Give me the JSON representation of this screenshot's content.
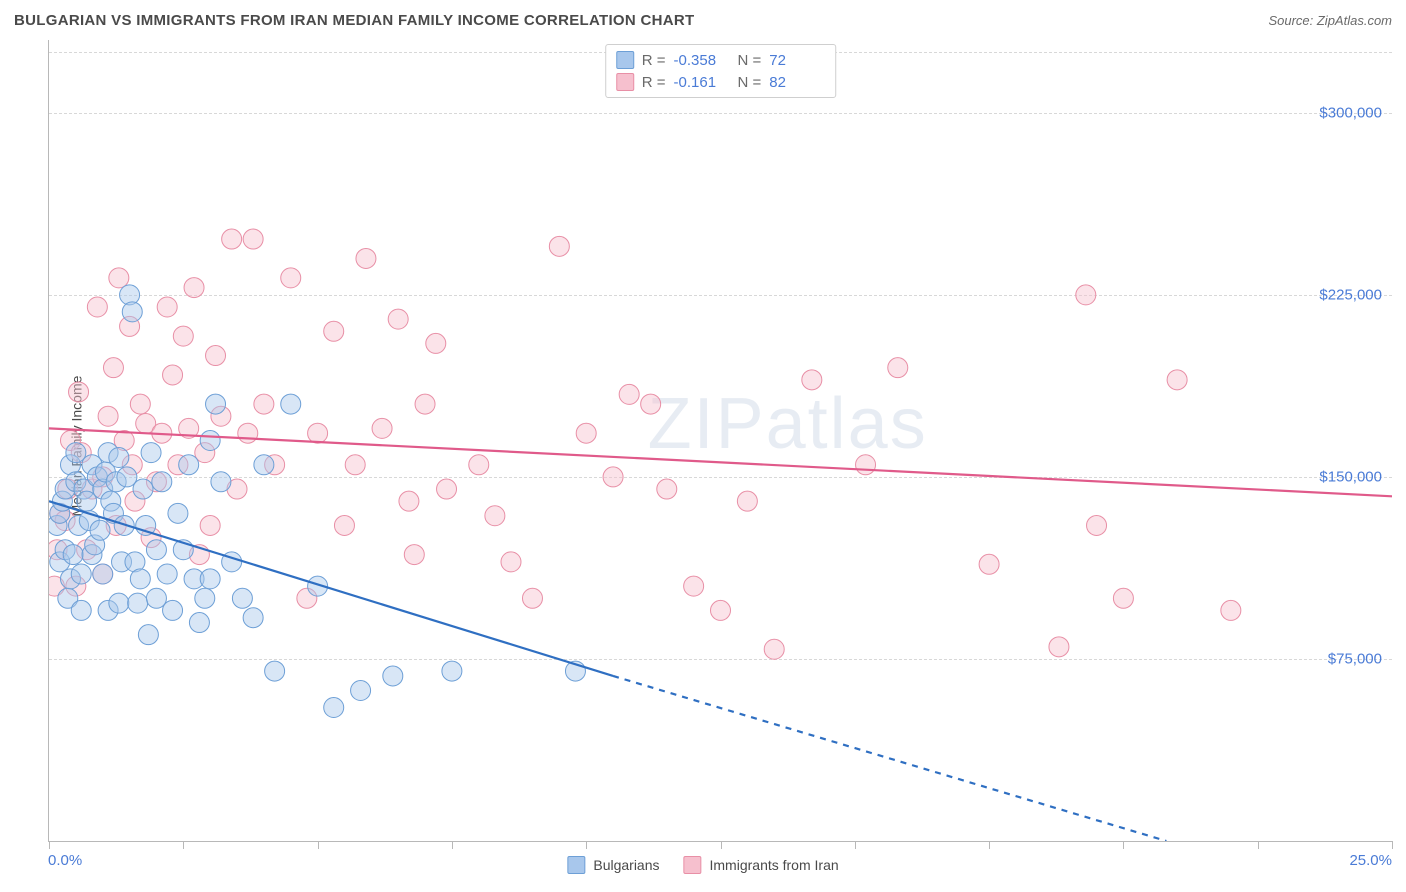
{
  "header": {
    "title": "BULGARIAN VS IMMIGRANTS FROM IRAN MEDIAN FAMILY INCOME CORRELATION CHART",
    "source": "Source: ZipAtlas.com"
  },
  "watermark": "ZIPatlas",
  "chart": {
    "type": "scatter",
    "ylabel": "Median Family Income",
    "xlim": [
      0,
      25
    ],
    "ylim": [
      0,
      330000
    ],
    "xtick_positions": [
      0,
      2.5,
      5,
      7.5,
      10,
      12.5,
      15,
      17.5,
      20,
      22.5,
      25
    ],
    "xlabel_min": "0.0%",
    "xlabel_max": "25.0%",
    "ytick_values": [
      75000,
      150000,
      225000,
      300000
    ],
    "ytick_labels": [
      "$75,000",
      "$150,000",
      "$225,000",
      "$300,000"
    ],
    "grid_y_values": [
      75000,
      150000,
      225000,
      300000,
      325000
    ],
    "background_color": "#ffffff",
    "grid_color": "#d8d8d8",
    "axis_color": "#b8b8b8",
    "marker_radius": 10,
    "marker_opacity": 0.45,
    "line_width": 2.2
  },
  "series": {
    "blue": {
      "label": "Bulgarians",
      "fill": "#a8c7ec",
      "stroke": "#6d9fd6",
      "line_color": "#2f6fc2",
      "R": "-0.358",
      "N": "72",
      "trend": {
        "x1": 0,
        "y1": 140000,
        "x2": 10.5,
        "y2": 68000,
        "x_dash_end": 20.8,
        "y_dash_end": 0
      },
      "points": [
        [
          0.15,
          130000
        ],
        [
          0.2,
          135000
        ],
        [
          0.2,
          115000
        ],
        [
          0.25,
          140000
        ],
        [
          0.3,
          145000
        ],
        [
          0.3,
          120000
        ],
        [
          0.35,
          100000
        ],
        [
          0.4,
          155000
        ],
        [
          0.4,
          108000
        ],
        [
          0.45,
          118000
        ],
        [
          0.5,
          148000
        ],
        [
          0.5,
          160000
        ],
        [
          0.55,
          130000
        ],
        [
          0.6,
          110000
        ],
        [
          0.6,
          95000
        ],
        [
          0.65,
          145000
        ],
        [
          0.7,
          140000
        ],
        [
          0.75,
          132000
        ],
        [
          0.8,
          118000
        ],
        [
          0.8,
          155000
        ],
        [
          0.85,
          122000
        ],
        [
          0.9,
          150000
        ],
        [
          0.95,
          128000
        ],
        [
          1.0,
          145000
        ],
        [
          1.0,
          110000
        ],
        [
          1.05,
          152000
        ],
        [
          1.1,
          160000
        ],
        [
          1.1,
          95000
        ],
        [
          1.15,
          140000
        ],
        [
          1.2,
          135000
        ],
        [
          1.25,
          148000
        ],
        [
          1.3,
          158000
        ],
        [
          1.3,
          98000
        ],
        [
          1.35,
          115000
        ],
        [
          1.4,
          130000
        ],
        [
          1.45,
          150000
        ],
        [
          1.5,
          225000
        ],
        [
          1.55,
          218000
        ],
        [
          1.6,
          115000
        ],
        [
          1.65,
          98000
        ],
        [
          1.7,
          108000
        ],
        [
          1.75,
          145000
        ],
        [
          1.8,
          130000
        ],
        [
          1.85,
          85000
        ],
        [
          1.9,
          160000
        ],
        [
          2.0,
          120000
        ],
        [
          2.0,
          100000
        ],
        [
          2.1,
          148000
        ],
        [
          2.2,
          110000
        ],
        [
          2.3,
          95000
        ],
        [
          2.4,
          135000
        ],
        [
          2.5,
          120000
        ],
        [
          2.6,
          155000
        ],
        [
          2.7,
          108000
        ],
        [
          2.8,
          90000
        ],
        [
          2.9,
          100000
        ],
        [
          3.0,
          165000
        ],
        [
          3.0,
          108000
        ],
        [
          3.1,
          180000
        ],
        [
          3.2,
          148000
        ],
        [
          3.4,
          115000
        ],
        [
          3.6,
          100000
        ],
        [
          3.8,
          92000
        ],
        [
          4.0,
          155000
        ],
        [
          4.2,
          70000
        ],
        [
          4.5,
          180000
        ],
        [
          5.0,
          105000
        ],
        [
          5.3,
          55000
        ],
        [
          5.8,
          62000
        ],
        [
          6.4,
          68000
        ],
        [
          7.5,
          70000
        ],
        [
          9.8,
          70000
        ]
      ]
    },
    "pink": {
      "label": "Immigrants from Iran",
      "fill": "#f6c0ce",
      "stroke": "#e88fa6",
      "line_color": "#e05a8a",
      "R": "-0.161",
      "N": "82",
      "trend": {
        "x1": 0,
        "y1": 170000,
        "x2": 25,
        "y2": 142000
      },
      "points": [
        [
          0.1,
          105000
        ],
        [
          0.15,
          120000
        ],
        [
          0.2,
          135000
        ],
        [
          0.3,
          132000
        ],
        [
          0.35,
          145000
        ],
        [
          0.4,
          165000
        ],
        [
          0.5,
          105000
        ],
        [
          0.55,
          185000
        ],
        [
          0.6,
          160000
        ],
        [
          0.7,
          120000
        ],
        [
          0.8,
          145000
        ],
        [
          0.9,
          220000
        ],
        [
          1.0,
          150000
        ],
        [
          1.0,
          110000
        ],
        [
          1.1,
          175000
        ],
        [
          1.2,
          195000
        ],
        [
          1.25,
          130000
        ],
        [
          1.3,
          232000
        ],
        [
          1.4,
          165000
        ],
        [
          1.5,
          212000
        ],
        [
          1.55,
          155000
        ],
        [
          1.6,
          140000
        ],
        [
          1.7,
          180000
        ],
        [
          1.8,
          172000
        ],
        [
          1.9,
          125000
        ],
        [
          2.0,
          148000
        ],
        [
          2.1,
          168000
        ],
        [
          2.2,
          220000
        ],
        [
          2.3,
          192000
        ],
        [
          2.4,
          155000
        ],
        [
          2.5,
          208000
        ],
        [
          2.6,
          170000
        ],
        [
          2.7,
          228000
        ],
        [
          2.8,
          118000
        ],
        [
          2.9,
          160000
        ],
        [
          3.0,
          130000
        ],
        [
          3.1,
          200000
        ],
        [
          3.2,
          175000
        ],
        [
          3.4,
          248000
        ],
        [
          3.5,
          145000
        ],
        [
          3.7,
          168000
        ],
        [
          3.8,
          248000
        ],
        [
          4.0,
          180000
        ],
        [
          4.2,
          155000
        ],
        [
          4.5,
          232000
        ],
        [
          4.8,
          100000
        ],
        [
          5.0,
          168000
        ],
        [
          5.3,
          210000
        ],
        [
          5.5,
          130000
        ],
        [
          5.7,
          155000
        ],
        [
          5.9,
          240000
        ],
        [
          6.2,
          170000
        ],
        [
          6.5,
          215000
        ],
        [
          6.7,
          140000
        ],
        [
          6.8,
          118000
        ],
        [
          7.0,
          180000
        ],
        [
          7.2,
          205000
        ],
        [
          7.4,
          145000
        ],
        [
          8.0,
          155000
        ],
        [
          8.3,
          134000
        ],
        [
          8.6,
          115000
        ],
        [
          9.0,
          100000
        ],
        [
          9.5,
          245000
        ],
        [
          10.0,
          168000
        ],
        [
          10.5,
          150000
        ],
        [
          10.8,
          184000
        ],
        [
          11.2,
          180000
        ],
        [
          11.5,
          145000
        ],
        [
          12.0,
          105000
        ],
        [
          12.5,
          95000
        ],
        [
          13.0,
          140000
        ],
        [
          13.5,
          79000
        ],
        [
          14.2,
          190000
        ],
        [
          15.2,
          155000
        ],
        [
          15.8,
          195000
        ],
        [
          17.5,
          114000
        ],
        [
          18.8,
          80000
        ],
        [
          19.3,
          225000
        ],
        [
          19.5,
          130000
        ],
        [
          20.0,
          100000
        ],
        [
          21.0,
          190000
        ],
        [
          22.0,
          95000
        ]
      ]
    }
  },
  "top_legend": {
    "r_label": "R =",
    "n_label": "N ="
  }
}
